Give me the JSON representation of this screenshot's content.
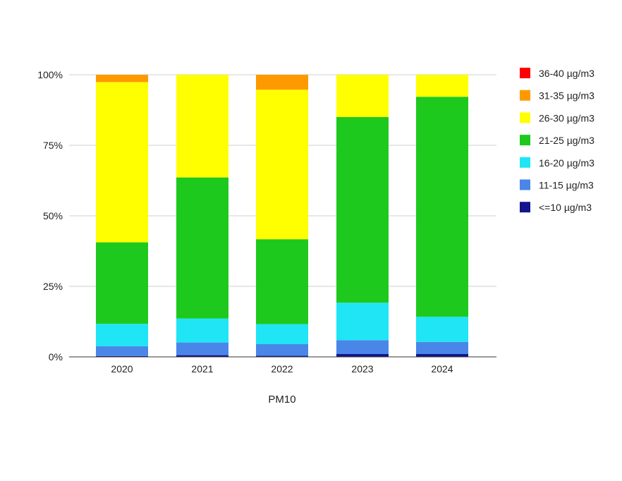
{
  "chart_data": {
    "type": "bar",
    "stacked": true,
    "percent_stacked": true,
    "title": "",
    "xlabel": "PM10",
    "ylabel": "",
    "ylim": [
      0,
      100
    ],
    "y_ticks": [
      "0%",
      "25%",
      "50%",
      "75%",
      "100%"
    ],
    "y_tick_values": [
      0,
      25,
      50,
      75,
      100
    ],
    "grid": true,
    "legend_position": "right",
    "categories": [
      "2020",
      "2021",
      "2022",
      "2023",
      "2024"
    ],
    "series": [
      {
        "name": "<=10 µg/m3",
        "color": "#14148c",
        "values": [
          0.3,
          0.6,
          0.4,
          1.0,
          1.0
        ]
      },
      {
        "name": "11-15 µg/m3",
        "color": "#4a86e8",
        "values": [
          3.5,
          4.5,
          4.1,
          4.9,
          4.3
        ]
      },
      {
        "name": "16-20 µg/m3",
        "color": "#1fe5f5",
        "values": [
          7.9,
          8.5,
          7.1,
          13.3,
          8.9
        ]
      },
      {
        "name": "21-25 µg/m3",
        "color": "#1ec91e",
        "values": [
          28.9,
          50.0,
          30.1,
          65.8,
          78.0
        ]
      },
      {
        "name": "26-30 µg/m3",
        "color": "#ffff00",
        "values": [
          56.8,
          36.4,
          53.0,
          15.0,
          7.8
        ]
      },
      {
        "name": "31-35 µg/m3",
        "color": "#ff9900",
        "values": [
          2.6,
          0.0,
          5.3,
          0.0,
          0.0
        ]
      },
      {
        "name": "36-40 µg/m3",
        "color": "#ff0000",
        "values": [
          0.0,
          0.0,
          0.0,
          0.0,
          0.0
        ]
      }
    ]
  }
}
